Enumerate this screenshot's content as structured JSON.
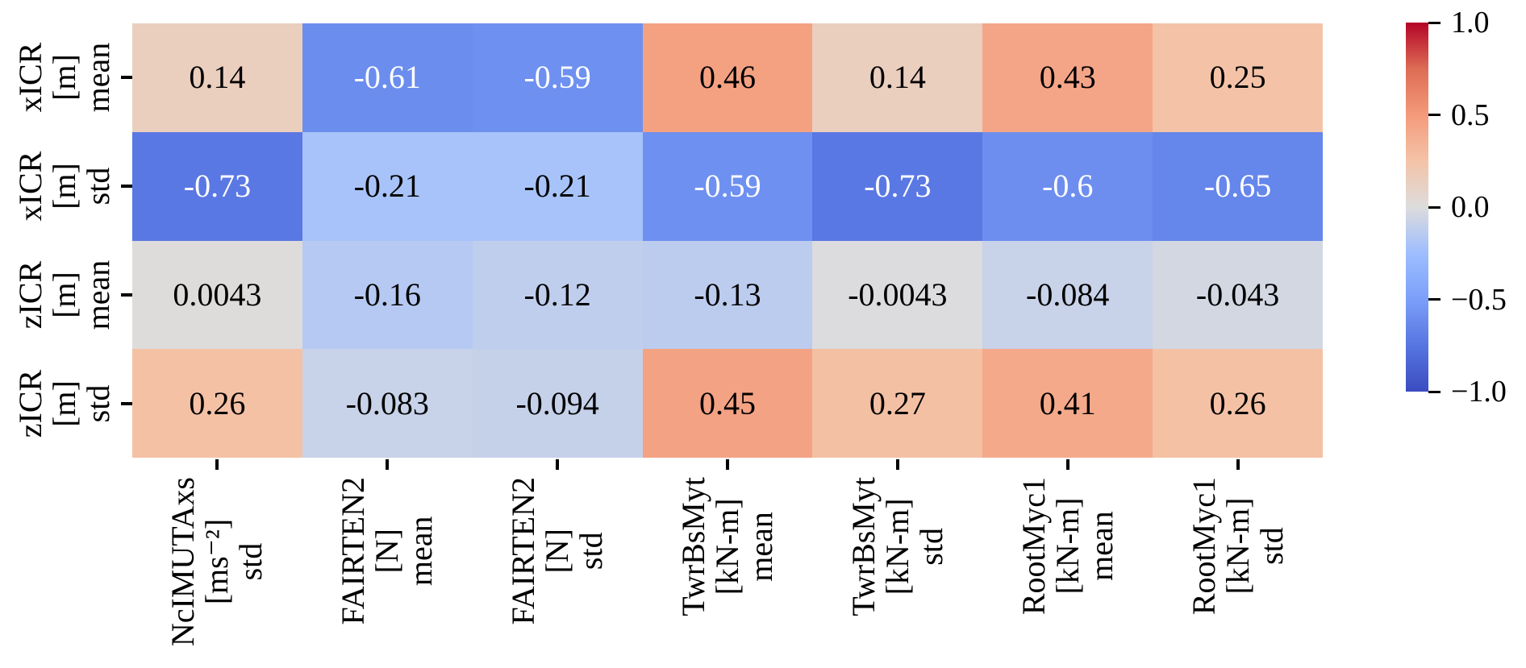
{
  "figure": {
    "background": "#ffffff",
    "tick_color": "#000000",
    "annotation_colors": {
      "on_light_cells": "#000000",
      "on_dark_cells": "#ffffff"
    }
  },
  "chart_data": {
    "type": "heatmap",
    "title": "",
    "xlabel": "",
    "ylabel": "",
    "vmin": -1.0,
    "vmax": 1.0,
    "grid": false,
    "colorbar": {
      "position": "right",
      "tick_labels": [
        "1.0",
        "0.5",
        "0.0",
        "−0.5",
        "−1.0"
      ],
      "tick_values": [
        1.0,
        0.5,
        0.0,
        -0.5,
        -1.0
      ]
    },
    "colormap": {
      "name": "coolwarm",
      "stops_t": [
        0,
        0.125,
        0.25,
        0.375,
        0.5,
        0.625,
        0.75,
        0.875,
        1
      ],
      "stops_hex": [
        "#3b4cc0",
        "#5775e1",
        "#7b9ff9",
        "#9ebeff",
        "#dddcdc",
        "#f4c3a7",
        "#f49a7b",
        "#dd6c55",
        "#b40426"
      ]
    },
    "row_labels": [
      "xICR\n[m]\nmean",
      "xICR\n[m]\nstd",
      "zICR\n[m]\nmean",
      "zICR\n[m]\nstd"
    ],
    "col_labels": [
      "NcIMUTAxs\n[ms⁻²]\nstd",
      "FAIRTEN2\n[N]\nmean",
      "FAIRTEN2\n[N]\nstd",
      "TwrBsMyt\n[kN-m]\nmean",
      "TwrBsMyt\n[kN-m]\nstd",
      "RootMyc1\n[kN-m]\nmean",
      "RootMyc1\n[kN-m]\nstd"
    ],
    "values": [
      [
        0.14,
        -0.61,
        -0.59,
        0.46,
        0.14,
        0.43,
        0.25
      ],
      [
        -0.73,
        -0.21,
        -0.21,
        -0.59,
        -0.73,
        -0.6,
        -0.65
      ],
      [
        0.0043,
        -0.16,
        -0.12,
        -0.13,
        -0.0043,
        -0.084,
        -0.043
      ],
      [
        0.26,
        -0.083,
        -0.094,
        0.45,
        0.27,
        0.41,
        0.26
      ]
    ],
    "cell_labels": [
      [
        "0.14",
        "-0.61",
        "-0.59",
        "0.46",
        "0.14",
        "0.43",
        "0.25"
      ],
      [
        "-0.73",
        "-0.21",
        "-0.21",
        "-0.59",
        "-0.73",
        "-0.6",
        "-0.65"
      ],
      [
        "0.0043",
        "-0.16",
        "-0.12",
        "-0.13",
        "-0.0043",
        "-0.084",
        "-0.043"
      ],
      [
        "0.26",
        "-0.083",
        "-0.094",
        "0.45",
        "0.27",
        "0.41",
        "0.26"
      ]
    ]
  }
}
